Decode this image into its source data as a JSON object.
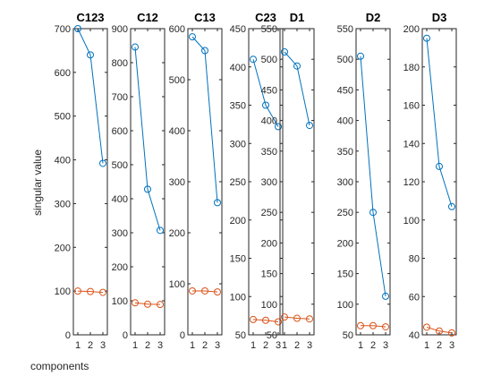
{
  "chart_data": {
    "type": "line",
    "ylabel": "singular value",
    "xlabel": "components",
    "colors": {
      "series1": "#0072BD",
      "series2": "#D95319",
      "axes": "#262626"
    },
    "panels": [
      {
        "title": "C123",
        "x": [
          1,
          2,
          3
        ],
        "ylim": [
          0,
          700
        ],
        "yticks": [
          "0",
          "100",
          "200",
          "300",
          "400",
          "500",
          "600",
          "700"
        ],
        "series": [
          {
            "values": [
              700,
              640,
              392
            ]
          },
          {
            "values": [
              100,
              99,
              97
            ]
          }
        ]
      },
      {
        "title": "C12",
        "x": [
          1,
          2,
          3
        ],
        "ylim": [
          0,
          900
        ],
        "yticks": [
          "0",
          "100",
          "200",
          "300",
          "400",
          "500",
          "600",
          "700",
          "800",
          "900"
        ],
        "series": [
          {
            "values": [
              846,
              428,
              307
            ]
          },
          {
            "values": [
              94,
              90,
              89
            ]
          }
        ]
      },
      {
        "title": "C13",
        "x": [
          1,
          2,
          3
        ],
        "ylim": [
          0,
          600
        ],
        "yticks": [
          "0",
          "100",
          "200",
          "300",
          "400",
          "500",
          "600"
        ],
        "series": [
          {
            "values": [
              584,
              557,
              259
            ]
          },
          {
            "values": [
              86,
              86,
              84
            ]
          }
        ]
      },
      {
        "title": "C23",
        "x": [
          1,
          2,
          3
        ],
        "ylim": [
          50,
          450
        ],
        "yticks": [
          "50",
          "100",
          "150",
          "200",
          "250",
          "300",
          "350",
          "400",
          "450"
        ],
        "series": [
          {
            "values": [
              410,
              350,
              322
            ]
          },
          {
            "values": [
              70,
              69,
              67
            ]
          }
        ]
      },
      {
        "title": "D1",
        "x": [
          1,
          2,
          3
        ],
        "ylim": [
          50,
          550
        ],
        "yticks": [
          "50",
          "100",
          "150",
          "200",
          "250",
          "300",
          "350",
          "400",
          "450",
          "500",
          "550"
        ],
        "series": [
          {
            "values": [
              512,
              489,
              392
            ]
          },
          {
            "values": [
              79,
              77,
              76
            ]
          }
        ]
      },
      {
        "title": "D2",
        "x": [
          1,
          2,
          3
        ],
        "ylim": [
          50,
          550
        ],
        "yticks": [
          "50",
          "100",
          "150",
          "200",
          "250",
          "300",
          "350",
          "400",
          "450",
          "500",
          "550"
        ],
        "series": [
          {
            "values": [
              505,
              250,
              113
            ]
          },
          {
            "values": [
              65,
              65,
              63
            ]
          }
        ]
      },
      {
        "title": "D3",
        "x": [
          1,
          2,
          3
        ],
        "ylim": [
          40,
          200
        ],
        "yticks": [
          "40",
          "60",
          "80",
          "100",
          "120",
          "140",
          "160",
          "180",
          "200"
        ],
        "series": [
          {
            "values": [
              195,
              128,
              107
            ]
          },
          {
            "values": [
              44,
              42,
              41
            ]
          }
        ]
      }
    ]
  }
}
